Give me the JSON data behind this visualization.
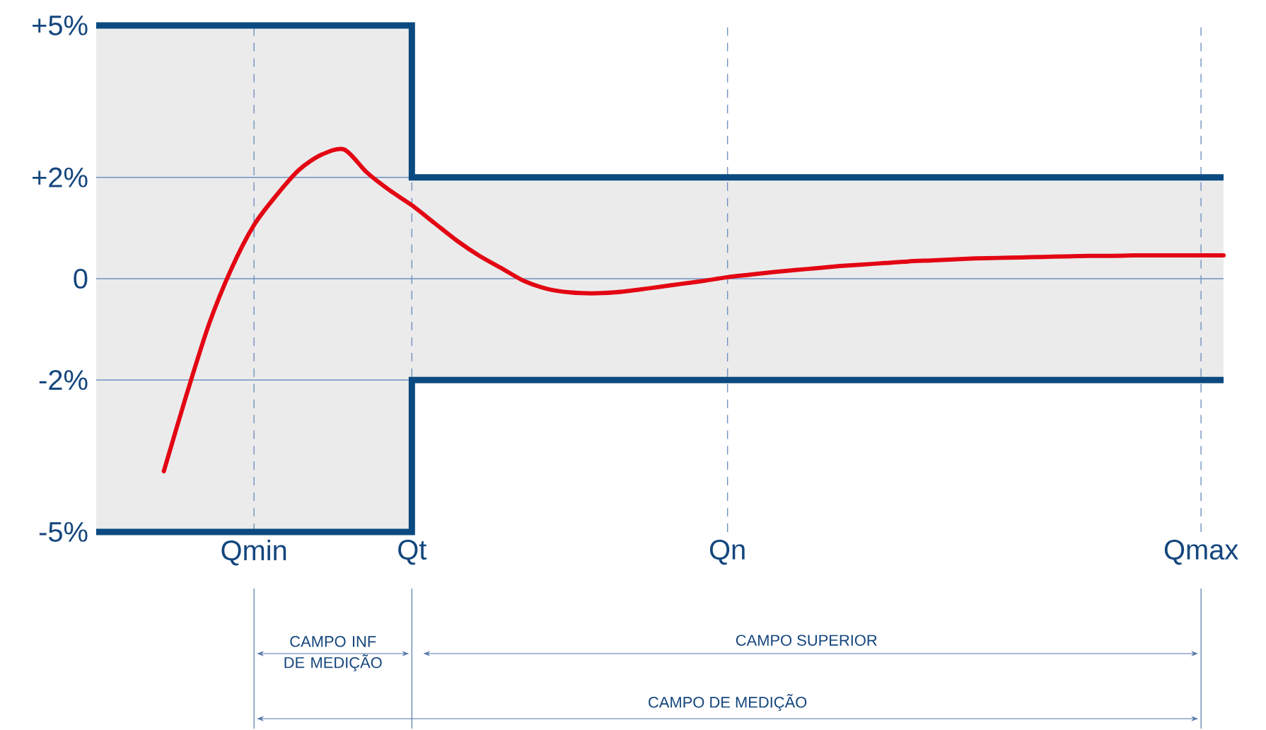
{
  "chart_data": {
    "type": "line",
    "categories": [
      null,
      null,
      null,
      null,
      null,
      null,
      null,
      "Qmin",
      null,
      null,
      null,
      null,
      null,
      null,
      "Qt",
      null,
      null,
      null,
      null,
      null,
      null,
      null,
      null,
      null,
      null,
      null,
      null,
      null,
      "Qn",
      null,
      null,
      null,
      null,
      null,
      null,
      null,
      null,
      null,
      null,
      null,
      null,
      null,
      null,
      null,
      null,
      null,
      null,
      null,
      null,
      "Qmax",
      null
    ],
    "ylim": [
      -5,
      5
    ],
    "yticks": [
      {
        "value": 5,
        "label": "+5%"
      },
      {
        "value": 2,
        "label": "+2%"
      },
      0,
      {
        "value": -2,
        "label": "-2%"
      },
      {
        "value": -5,
        "label": "-5%"
      }
    ],
    "grid": "x",
    "series": [
      {
        "type": "step",
        "color": "#0b4a80",
        "values": [
          5,
          5,
          5,
          5,
          5,
          5,
          5,
          5,
          5,
          5,
          5,
          5,
          5,
          5,
          2,
          2,
          2,
          2,
          2,
          2,
          2,
          2,
          2,
          2,
          2,
          2,
          2,
          2,
          2,
          2,
          2,
          2,
          2,
          2,
          2,
          2,
          2,
          2,
          2,
          2,
          2,
          2,
          2,
          2,
          2,
          2,
          2,
          2,
          2,
          2,
          2
        ]
      },
      {
        "type": "step",
        "color": "#0b4a80",
        "values": [
          -5,
          -5,
          -5,
          -5,
          -5,
          -5,
          -5,
          -5,
          -5,
          -5,
          -5,
          -5,
          -5,
          -5,
          -2,
          -2,
          -2,
          -2,
          -2,
          -2,
          -2,
          -2,
          -2,
          -2,
          -2,
          -2,
          -2,
          -2,
          -2,
          -2,
          -2,
          -2,
          -2,
          -2,
          -2,
          -2,
          -2,
          -2,
          -2,
          -2,
          -2,
          -2,
          -2,
          -2,
          -2,
          -2,
          -2,
          -2,
          -2,
          -2,
          -2
        ]
      },
      {
        "color": "#e30613",
        "lower": [
          -5,
          -5,
          -5,
          -5,
          -5,
          -5,
          -5,
          -5,
          -5,
          -5,
          -5,
          -5,
          -5,
          -5,
          -2,
          -2,
          -2,
          -2,
          -2,
          -2,
          -2,
          -2,
          -2,
          -2,
          -2,
          -2,
          -2,
          -2,
          -2,
          -2,
          -2,
          -2,
          -2,
          -2,
          -2,
          -2,
          -2,
          -2,
          -2,
          -2,
          -2,
          -2,
          -2,
          -2,
          -2,
          -2,
          -2,
          -2,
          -2,
          -2,
          -2
        ],
        "upper": [
          5,
          5,
          5,
          5,
          5,
          5,
          5,
          5,
          5,
          5,
          5,
          5,
          5,
          5,
          2,
          2,
          2,
          2,
          2,
          2,
          2,
          2,
          2,
          2,
          2,
          2,
          2,
          2,
          2,
          2,
          2,
          2,
          2,
          2,
          2,
          2,
          2,
          2,
          2,
          2,
          2,
          2,
          2,
          2,
          2,
          2,
          2,
          2,
          2,
          2,
          2
        ],
        "values": [
          null,
          null,
          null,
          -3.8,
          -2.3,
          -0.9,
          0.2,
          1.06,
          1.65,
          2.15,
          2.45,
          2.55,
          2.1,
          1.75,
          1.45,
          1.1,
          0.75,
          0.45,
          0.2,
          -0.05,
          -0.2,
          -0.27,
          -0.29,
          -0.27,
          -0.22,
          -0.16,
          -0.1,
          -0.04,
          0.03,
          0.08,
          0.13,
          0.17,
          0.21,
          0.25,
          0.28,
          0.31,
          0.34,
          0.36,
          0.38,
          0.4,
          0.41,
          0.42,
          0.43,
          0.44,
          0.45,
          0.45,
          0.46,
          0.46,
          0.46,
          0.46,
          0.46
        ]
      }
    ],
    "ref_lines": [
      {
        "axis": "y",
        "value": 2,
        "color": "#7090c0"
      },
      {
        "axis": "y",
        "value": 0,
        "color": "#7090c0"
      },
      {
        "axis": "y",
        "value": -2,
        "color": "#7090c0"
      }
    ],
    "annotations": [
      "CAMPO INF DE MEDIÇÃO",
      "CAMPO SUPERIOR",
      "CAMPO DE MEDIÇÃO"
    ]
  }
}
